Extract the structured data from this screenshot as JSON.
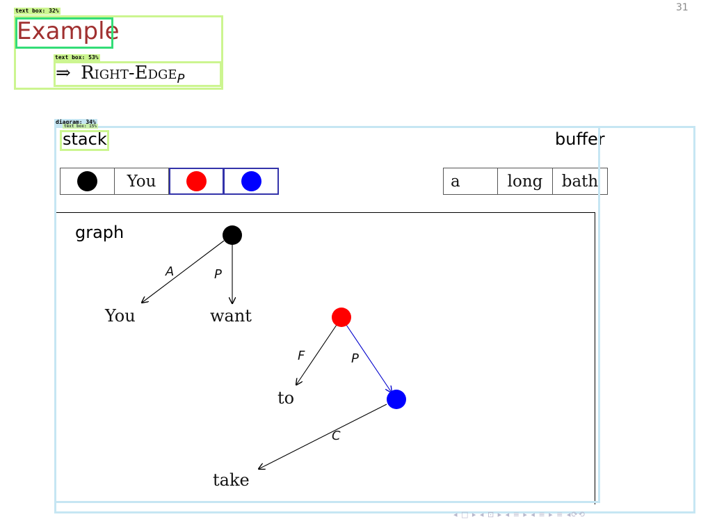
{
  "page_number": "31",
  "example_title": "Example",
  "rule": {
    "arrow": "⇒",
    "name": "Right-Edge",
    "subscript": "P"
  },
  "stack": {
    "label": "stack",
    "items": [
      {
        "kind": "node",
        "color": "#000000"
      },
      {
        "kind": "word",
        "text": "You"
      },
      {
        "kind": "node",
        "color": "#ff0000"
      },
      {
        "kind": "node",
        "color": "#0000ff"
      }
    ],
    "highlight_color": "#3333aa"
  },
  "buffer": {
    "label": "buffer",
    "words": [
      "a",
      "long",
      "bath"
    ]
  },
  "graph": {
    "label": "graph",
    "nodes": [
      {
        "id": "root",
        "color": "#000000"
      },
      {
        "id": "red",
        "color": "#ff0000"
      },
      {
        "id": "blue",
        "color": "#0000ff"
      }
    ],
    "words": [
      "You",
      "want",
      "to",
      "take"
    ],
    "edges": [
      {
        "from": "root",
        "to": "You",
        "label": "A"
      },
      {
        "from": "root",
        "to": "want",
        "label": "P"
      },
      {
        "from": "red",
        "to": "to",
        "label": "F"
      },
      {
        "from": "red",
        "to": "blue",
        "label": "P",
        "color": "#0000cc"
      },
      {
        "from": "blue",
        "to": "take",
        "label": "C"
      }
    ]
  },
  "detections": {
    "text_box_1": "text box: 32%",
    "text_box_2": "text box: 53%",
    "diagram": "diagram: 34%",
    "text_box_3": "text box: 15%"
  },
  "nav_symbols": "◂ □ ▸ ◂ ⊡ ▸ ◂ ≡ ▸ ◂ ≡ ▸ ≡ ◂⟳⟲"
}
